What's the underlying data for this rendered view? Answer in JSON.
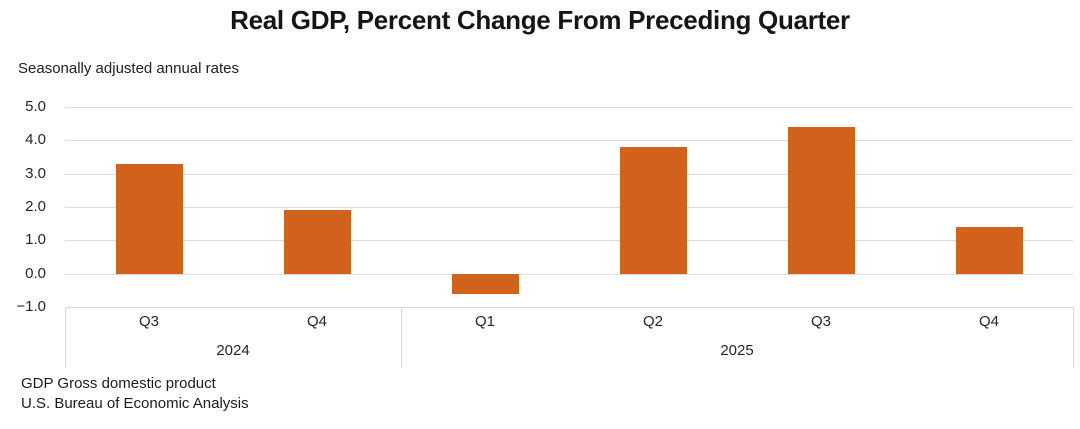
{
  "chart": {
    "title": "Real GDP, Percent Change From Preceding Quarter",
    "subtitle": "Seasonally adjusted annual rates"
  },
  "footer": {
    "line1": "GDP Gross domestic product",
    "line2": "U.S. Bureau of Economic Analysis"
  },
  "chart_data": {
    "type": "bar",
    "title": "Real GDP, Percent Change From Preceding Quarter",
    "subtitle": "Seasonally adjusted annual rates",
    "categories": [
      "Q3",
      "Q4",
      "Q1",
      "Q2",
      "Q3",
      "Q4"
    ],
    "values": [
      3.3,
      1.9,
      -0.6,
      3.8,
      4.4,
      1.4
    ],
    "category_groups": [
      {
        "label": "2024",
        "span": 2
      },
      {
        "label": "2025",
        "span": 4
      }
    ],
    "xlabel": "",
    "ylabel": "",
    "ylim": [
      -1.0,
      5.0
    ],
    "yticks": [
      {
        "value": 5.0,
        "label": "5.0"
      },
      {
        "value": 4.0,
        "label": "4.0"
      },
      {
        "value": 3.0,
        "label": "3.0"
      },
      {
        "value": 2.0,
        "label": "2.0"
      },
      {
        "value": 1.0,
        "label": "1.0"
      },
      {
        "value": 0.0,
        "label": "0.0"
      },
      {
        "value": -1.0,
        "label": "−1.0"
      }
    ],
    "grid": true,
    "legend_position": "none",
    "bar_color": "#d2611c",
    "gridline_color": "#dcdcdc",
    "axis_line_color": "#d9d9d9"
  }
}
